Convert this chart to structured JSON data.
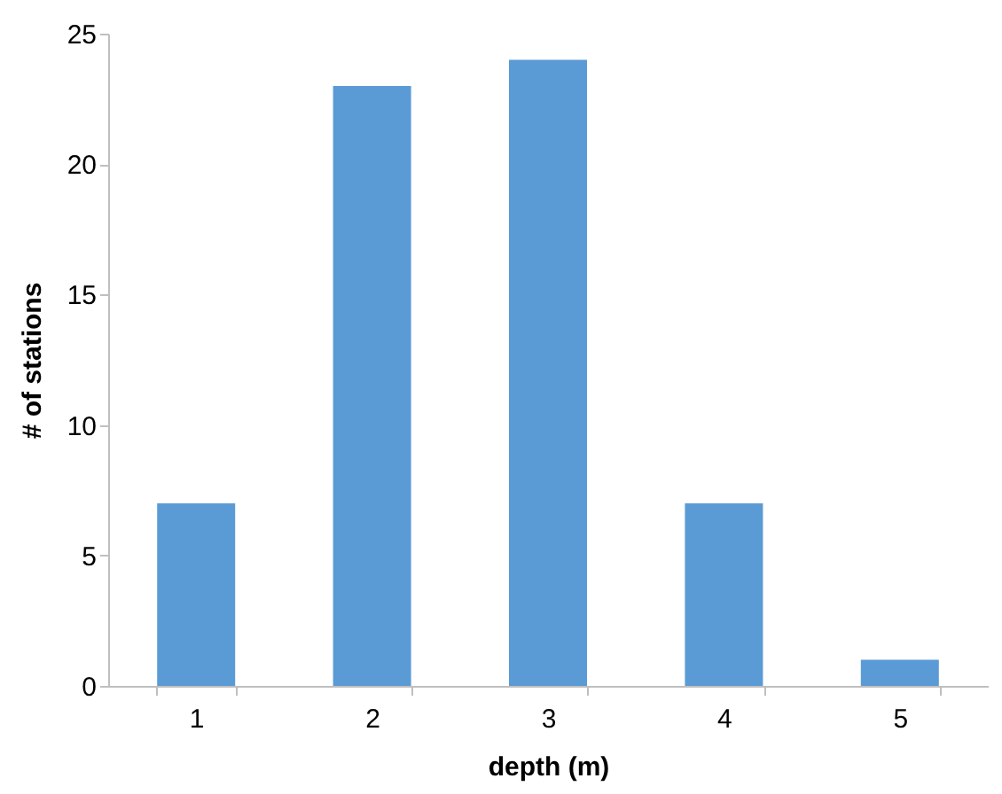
{
  "chart_data": {
    "type": "bar",
    "xlabel": "depth (m)",
    "ylabel": "# of  stations",
    "categories": [
      "1",
      "2",
      "3",
      "4",
      "5"
    ],
    "values": [
      7,
      23,
      24,
      7,
      1
    ],
    "color": "#5b9bd5",
    "ylim": [
      0,
      25
    ],
    "yticks": [
      0,
      5,
      10,
      15,
      20,
      25
    ],
    "grid": false
  }
}
